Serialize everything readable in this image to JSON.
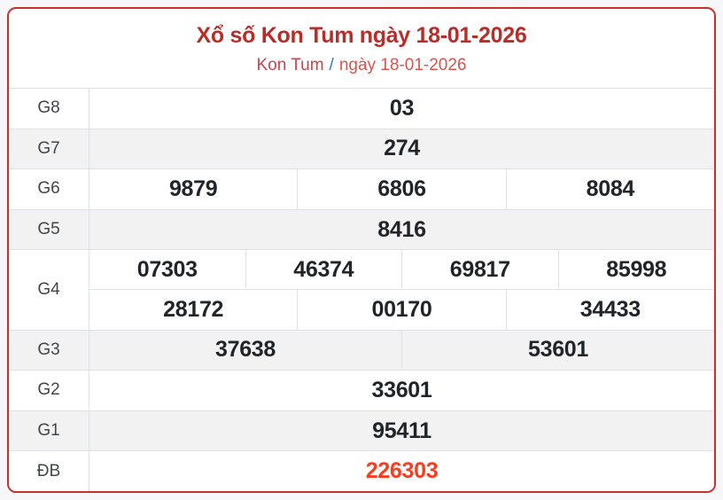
{
  "page": {
    "background": "#f7f7fa"
  },
  "card": {
    "border_color": "#c9302c",
    "background": "#ffffff"
  },
  "header": {
    "title": "Xổ số Kon Tum ngày 18-01-2026",
    "title_color": "#b92c28",
    "breadcrumb": {
      "region": "Kon Tum",
      "separator": "/",
      "date": "ngày 18-01-2026",
      "region_color": "#c9444d",
      "separator_color": "#337ab7",
      "date_color": "#d9534f"
    }
  },
  "table": {
    "stripe_color": "#f2f2f2",
    "border_color": "#dee2e6",
    "number_color": "#212529",
    "label_color": "#41464b",
    "special_color": "#fb3b1e",
    "rows": [
      {
        "key": "g8",
        "label": "G8",
        "striped": false,
        "special": false,
        "lines": [
          [
            "03"
          ]
        ]
      },
      {
        "key": "g7",
        "label": "G7",
        "striped": true,
        "special": false,
        "lines": [
          [
            "274"
          ]
        ]
      },
      {
        "key": "g6",
        "label": "G6",
        "striped": false,
        "special": false,
        "lines": [
          [
            "9879",
            "6806",
            "8084"
          ]
        ]
      },
      {
        "key": "g5",
        "label": "G5",
        "striped": true,
        "special": false,
        "lines": [
          [
            "8416"
          ]
        ]
      },
      {
        "key": "g4",
        "label": "G4",
        "striped": false,
        "special": false,
        "lines": [
          [
            "07303",
            "46374",
            "69817",
            "85998"
          ],
          [
            "28172",
            "00170",
            "34433"
          ]
        ]
      },
      {
        "key": "g3",
        "label": "G3",
        "striped": true,
        "special": false,
        "lines": [
          [
            "37638",
            "53601"
          ]
        ]
      },
      {
        "key": "g2",
        "label": "G2",
        "striped": false,
        "special": false,
        "lines": [
          [
            "33601"
          ]
        ]
      },
      {
        "key": "g1",
        "label": "G1",
        "striped": true,
        "special": false,
        "lines": [
          [
            "95411"
          ]
        ]
      },
      {
        "key": "db",
        "label": "ĐB",
        "striped": false,
        "special": true,
        "lines": [
          [
            "226303"
          ]
        ]
      }
    ]
  }
}
